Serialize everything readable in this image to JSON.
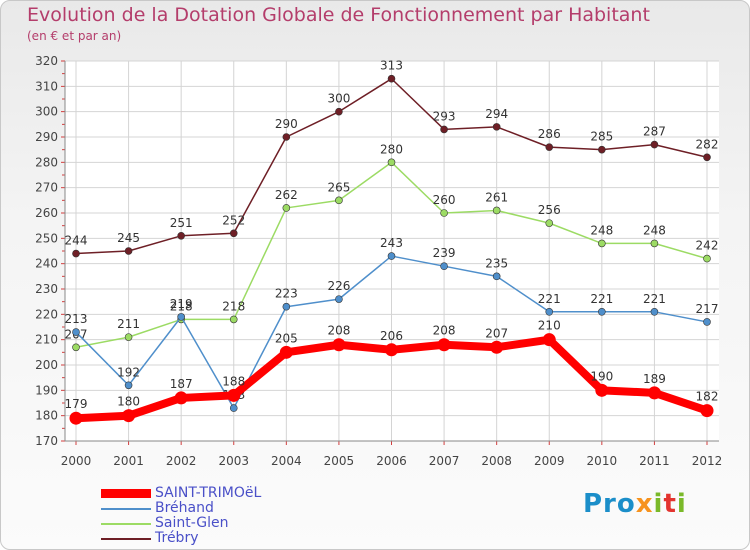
{
  "chart_data": {
    "type": "line",
    "title": "Evolution de la Dotation Globale de Fonctionnement par Habitant",
    "subtitle": "(en € et par an)",
    "categories": [
      "2000",
      "2001",
      "2002",
      "2003",
      "2004",
      "2005",
      "2006",
      "2007",
      "2008",
      "2009",
      "2010",
      "2011",
      "2012"
    ],
    "ylim": [
      170,
      320
    ],
    "yticks": [
      170,
      180,
      190,
      200,
      210,
      220,
      230,
      240,
      250,
      260,
      270,
      280,
      290,
      300,
      310,
      320
    ],
    "grid": true,
    "legend_position": "bottom-left",
    "series": [
      {
        "name": "SAINT-TRIMOëL",
        "color": "#ff0000",
        "values": [
          179,
          180,
          187,
          188,
          205,
          208,
          206,
          208,
          207,
          210,
          190,
          189,
          182
        ]
      },
      {
        "name": "Bréhand",
        "color": "#4f8fcb",
        "values": [
          213,
          192,
          219,
          183,
          223,
          226,
          243,
          239,
          235,
          221,
          221,
          221,
          217
        ]
      },
      {
        "name": "Saint-Glen",
        "color": "#9cdb64",
        "values": [
          207,
          211,
          218,
          218,
          262,
          265,
          280,
          260,
          261,
          256,
          248,
          248,
          242
        ]
      },
      {
        "name": "Trébry",
        "color": "#6e1f26",
        "values": [
          244,
          245,
          251,
          252,
          290,
          300,
          313,
          293,
          294,
          286,
          285,
          287,
          282
        ]
      }
    ]
  },
  "logo": {
    "p1": "Pro",
    "p2": "x",
    "p3": "i",
    "p4": "t",
    "p5": "i"
  }
}
